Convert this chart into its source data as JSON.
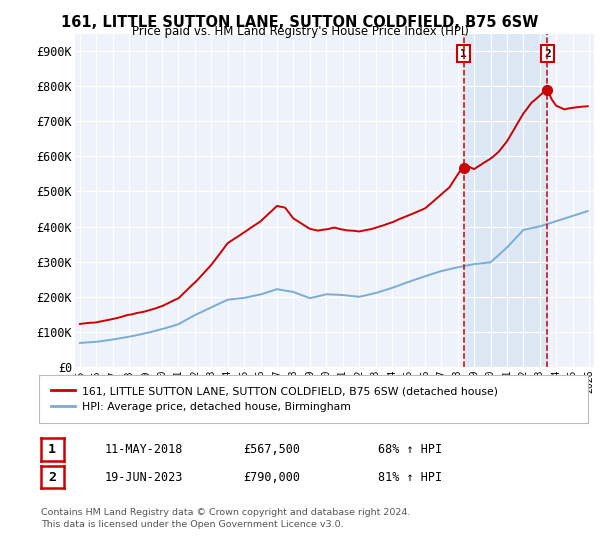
{
  "title": "161, LITTLE SUTTON LANE, SUTTON COLDFIELD, B75 6SW",
  "subtitle": "Price paid vs. HM Land Registry's House Price Index (HPI)",
  "hpi_label": "HPI: Average price, detached house, Birmingham",
  "property_label": "161, LITTLE SUTTON LANE, SUTTON COLDFIELD, B75 6SW (detached house)",
  "property_color": "#cc0000",
  "hpi_color": "#7aadd4",
  "shade_color": "#dce8f5",
  "background_color": "#eef2fa",
  "grid_color": "#ffffff",
  "ann1_year": 2018.36,
  "ann2_year": 2023.46,
  "ann1_val": 567500,
  "ann2_val": 790000,
  "annotation1": {
    "num": "1",
    "date": "11-MAY-2018",
    "price": "£567,500",
    "pct": "68% ↑ HPI"
  },
  "annotation2": {
    "num": "2",
    "date": "19-JUN-2023",
    "price": "£790,000",
    "pct": "81% ↑ HPI"
  },
  "footer": "Contains HM Land Registry data © Crown copyright and database right 2024.\nThis data is licensed under the Open Government Licence v3.0.",
  "ylim": [
    0,
    950000
  ],
  "yticks": [
    0,
    100000,
    200000,
    300000,
    400000,
    500000,
    600000,
    700000,
    800000,
    900000
  ],
  "ytick_labels": [
    "£0",
    "£100K",
    "£200K",
    "£300K",
    "£400K",
    "£500K",
    "£600K",
    "£700K",
    "£800K",
    "£900K"
  ]
}
